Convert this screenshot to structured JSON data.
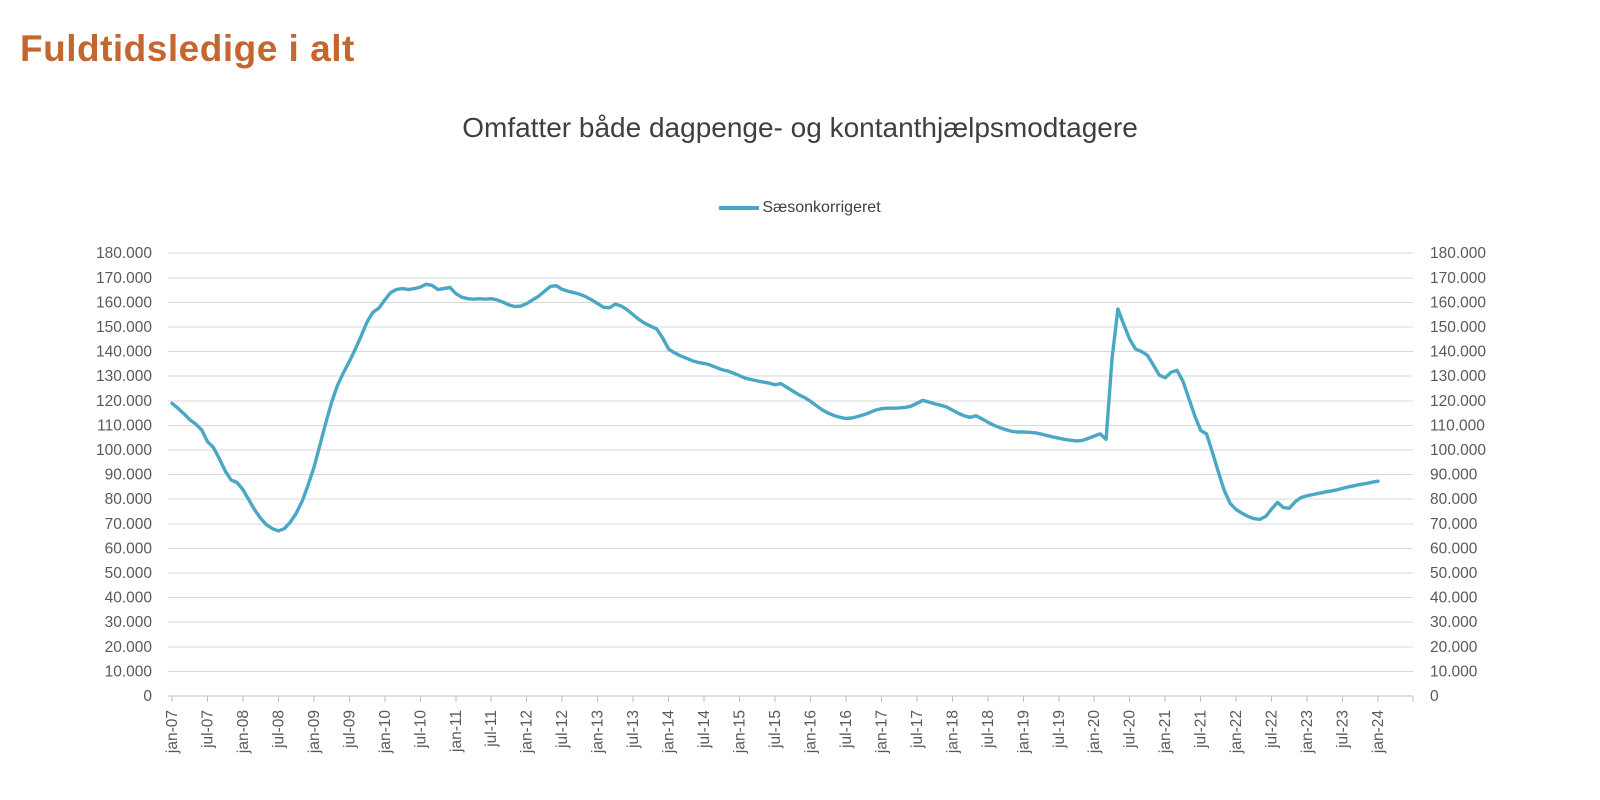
{
  "title": "Fuldtidsledige i alt",
  "chart": {
    "subtitle": "Omfatter både dagpenge- og kontanthjælpsmodtagere",
    "legend_label": "Sæsonkorrigeret"
  },
  "colors": {
    "title": "#C3662F",
    "series": "#4BA8C5",
    "gridline": "#D9D9D9",
    "axis": "#BFBFBF",
    "axis_label": "#595959",
    "text": "#404040"
  },
  "chart_data": {
    "type": "line",
    "title": "Omfatter både dagpenge- og kontanthjælpsmodtagere",
    "series_name": "Sæsonkorrigeret",
    "x_unit": "month",
    "x_start": "jan-07",
    "x_end": "jan-24",
    "n_points": 205,
    "grid": "horizontal",
    "legend_position": "top-center",
    "ylim": [
      0,
      180000
    ],
    "y_tick_step": 10000,
    "y_tick_labels": [
      "0",
      "10.000",
      "20.000",
      "30.000",
      "40.000",
      "50.000",
      "60.000",
      "70.000",
      "80.000",
      "90.000",
      "100.000",
      "110.000",
      "120.000",
      "130.000",
      "140.000",
      "150.000",
      "160.000",
      "170.000",
      "180.000"
    ],
    "x_tick_labels": [
      "jan-07",
      "jul-07",
      "jan-08",
      "jul-08",
      "jan-09",
      "jul-09",
      "jan-10",
      "jul-10",
      "jan-11",
      "jul-11",
      "jan-12",
      "jul-12",
      "jan-13",
      "jul-13",
      "jan-14",
      "jul-14",
      "jan-15",
      "jul-15",
      "jan-16",
      "jul-16",
      "jan-17",
      "jul-17",
      "jan-18",
      "jul-18",
      "jan-19",
      "jul-19",
      "jan-20",
      "jul-20",
      "jan-21",
      "jul-21",
      "jan-22",
      "jul-22",
      "jan-23",
      "jul-23",
      "jan-24"
    ],
    "values": [
      119000,
      117000,
      114800,
      112300,
      110600,
      108200,
      103400,
      101000,
      96500,
      91500,
      87800,
      86800,
      83900,
      79700,
      75600,
      72200,
      69600,
      68000,
      67100,
      68000,
      70600,
      74200,
      79100,
      85600,
      92900,
      101800,
      110900,
      119400,
      126300,
      131400,
      136000,
      141000,
      146400,
      152100,
      156000,
      157700,
      161000,
      164000,
      165300,
      165600,
      165200,
      165600,
      166200,
      167400,
      166900,
      165200,
      165600,
      166100,
      163600,
      162100,
      161500,
      161300,
      161500,
      161300,
      161500,
      161000,
      160100,
      159000,
      158300,
      158500,
      159500,
      161000,
      162500,
      164500,
      166500,
      166800,
      165300,
      164500,
      164000,
      163300,
      162300,
      161000,
      159500,
      158000,
      157800,
      159300,
      158500,
      157000,
      155000,
      153000,
      151500,
      150300,
      149200,
      145500,
      141000,
      139500,
      138300,
      137300,
      136300,
      135600,
      135200,
      134600,
      133600,
      132700,
      132100,
      131200,
      130200,
      129200,
      128600,
      128100,
      127600,
      127200,
      126500,
      127000,
      125500,
      124000,
      122500,
      121300,
      119800,
      118000,
      116300,
      115000,
      114000,
      113300,
      112800,
      113000,
      113600,
      114300,
      115200,
      116200,
      116800,
      117000,
      117000,
      117100,
      117300,
      117800,
      119000,
      120200,
      119500,
      118800,
      118200,
      117500,
      116200,
      114900,
      113900,
      113300,
      113900,
      112700,
      111300,
      110100,
      109100,
      108300,
      107600,
      107300,
      107300,
      107200,
      107000,
      106500,
      105900,
      105300,
      104800,
      104300,
      104000,
      103700,
      103900,
      104700,
      105700,
      106600,
      104300,
      137000,
      157300,
      151000,
      145000,
      141000,
      140000,
      138500,
      134500,
      130400,
      129400,
      131600,
      132400,
      128000,
      121000,
      114000,
      108000,
      106500,
      99000,
      91000,
      83500,
      78300,
      75800,
      74300,
      73000,
      72100,
      71800,
      73000,
      76000,
      78700,
      76600,
      76300,
      79000,
      80700,
      81400,
      81900,
      82400,
      82900,
      83300,
      83800,
      84400,
      85000,
      85500,
      86000,
      86400,
      86900,
      87300
    ]
  }
}
